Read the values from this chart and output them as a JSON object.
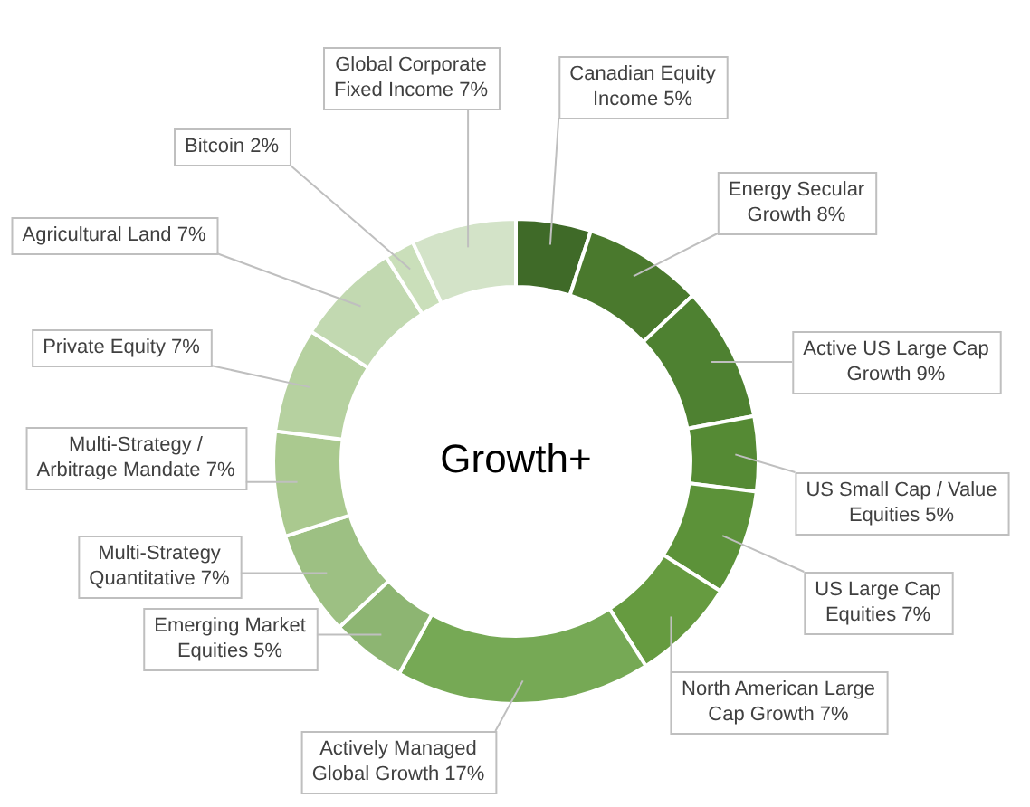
{
  "chart_data": {
    "type": "donut",
    "title": "Growth+",
    "value_labels": [
      "5%",
      "8%",
      "9%",
      "5%",
      "7%",
      "7%",
      "17%",
      "5%",
      "7%",
      "7%",
      "7%",
      "7%",
      "2%",
      "7%"
    ],
    "categories": [
      "Canadian Equity Income",
      "Energy Secular Growth",
      "Active US Large Cap Growth",
      "US Small Cap / Value Equities",
      "US Large Cap Equities",
      "North American Large Cap Growth",
      "Actively Managed Global Growth",
      "Emerging Market Equities",
      "Multi-Strategy Quantitative",
      "Multi-Strategy / Arbitrage Mandate",
      "Private Equity",
      "Agricultural Land",
      "Bitcoin",
      "Global Corporate Fixed Income"
    ],
    "values": [
      5,
      8,
      9,
      5,
      7,
      7,
      17,
      5,
      7,
      7,
      7,
      7,
      2,
      7
    ],
    "colors": [
      "#3f6a28",
      "#4a792d",
      "#4e8131",
      "#558a34",
      "#5c9239",
      "#669b40",
      "#76a955",
      "#8db572",
      "#9dc083",
      "#aac98f",
      "#b6d1a0",
      "#c2d9b1",
      "#cadfba",
      "#d3e3c8"
    ],
    "legend": false
  }
}
